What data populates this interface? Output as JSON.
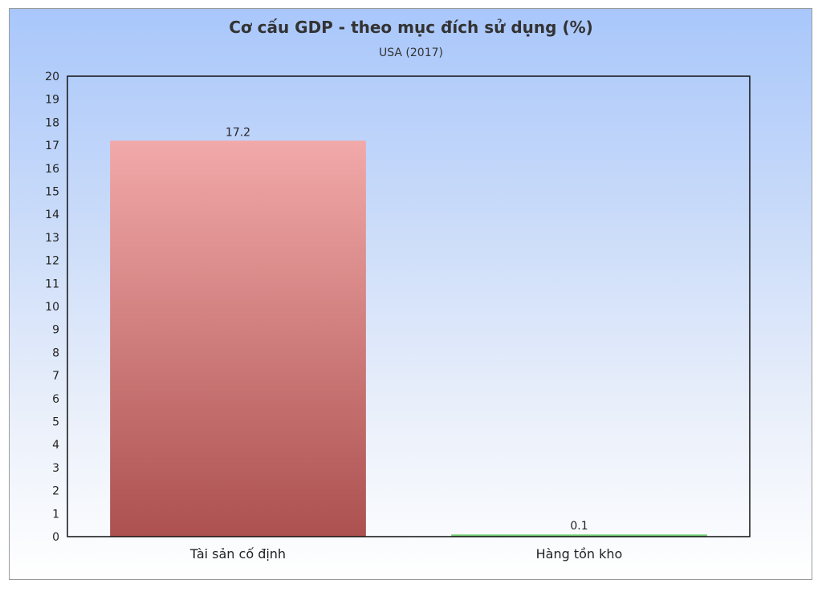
{
  "chart_data": {
    "type": "bar",
    "title": "Cơ cấu GDP - theo mục đích sử dụng (%)",
    "subtitle": "USA (2017)",
    "categories": [
      "Tài sản cố định",
      "Hàng tồn kho"
    ],
    "values": [
      17.2,
      0.1
    ],
    "colors": [
      "#ac5150",
      "#5cb85c"
    ],
    "ylim": [
      0,
      20
    ],
    "y_tick_step": 1,
    "grid": false,
    "legend": "none"
  }
}
